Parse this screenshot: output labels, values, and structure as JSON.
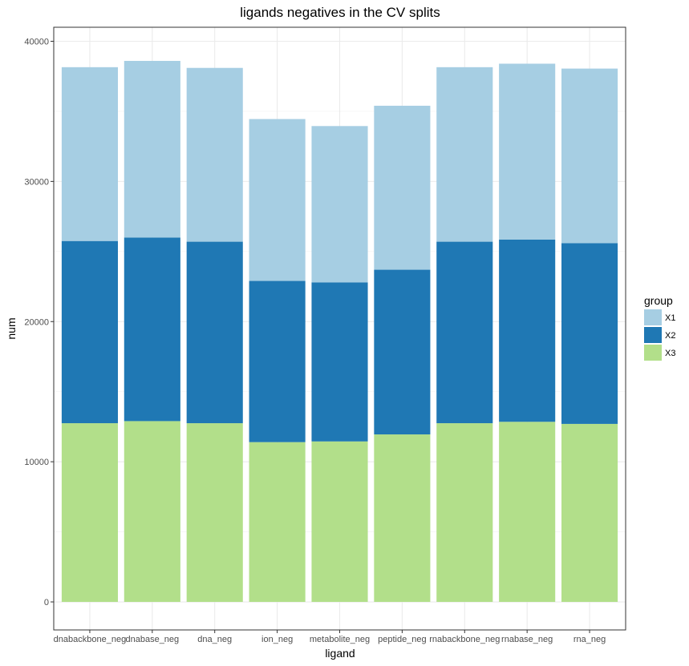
{
  "chart_data": {
    "type": "bar",
    "stacked": true,
    "title": "ligands negatives in the CV splits",
    "xlabel": "ligand",
    "ylabel": "num",
    "categories": [
      "dnabackbone_neg",
      "dnabase_neg",
      "dna_neg",
      "ion_neg",
      "metabolite_neg",
      "peptide_neg",
      "rnabackbone_neg",
      "rnabase_neg",
      "rna_neg"
    ],
    "series": [
      {
        "name": "X3",
        "color": "#b2df8a",
        "values": [
          12750,
          12900,
          12750,
          11400,
          11450,
          11950,
          12750,
          12850,
          12700
        ]
      },
      {
        "name": "X2",
        "color": "#1f78b4",
        "values": [
          13000,
          13100,
          12950,
          11500,
          11350,
          11750,
          12950,
          13000,
          12900
        ]
      },
      {
        "name": "X1",
        "color": "#a6cee3",
        "values": [
          12400,
          12600,
          12400,
          11550,
          11150,
          11700,
          12450,
          12550,
          12450
        ]
      }
    ],
    "ylim": [
      -2000,
      41000
    ],
    "yticks": [
      0,
      10000,
      20000,
      30000,
      40000
    ],
    "ytick_labels": [
      "0",
      "10000",
      "20000",
      "30000",
      "40000"
    ],
    "grid": true,
    "legend": {
      "title": "group",
      "position": "right",
      "entries": [
        {
          "label": "X1",
          "color": "#a6cee3"
        },
        {
          "label": "X2",
          "color": "#1f78b4"
        },
        {
          "label": "X3",
          "color": "#b2df8a"
        }
      ]
    }
  }
}
